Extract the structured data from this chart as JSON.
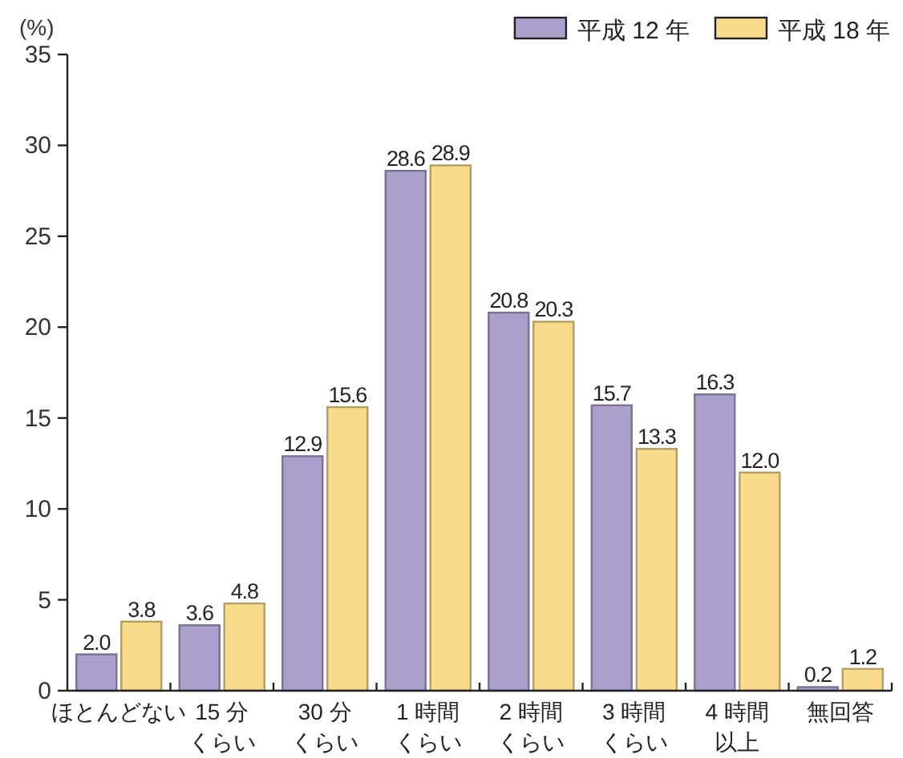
{
  "chart_data": {
    "type": "bar",
    "ylabel": "(%)",
    "categories": [
      "ほとんどない",
      "15 分くらい",
      "30 分くらい",
      "1 時間くらい",
      "2 時間くらい",
      "3 時間くらい",
      "4 時間以上",
      "無回答"
    ],
    "series": [
      {
        "name": "平成 12 年",
        "color": "#ab9fcc",
        "values": [
          2.0,
          3.6,
          12.9,
          28.6,
          20.8,
          15.7,
          16.3,
          0.2
        ],
        "value_labels": [
          "2.0",
          "3.6",
          "12.9",
          "28.6",
          "20.8",
          "15.7",
          "16.3",
          "0.2"
        ]
      },
      {
        "name": "平成 18 年",
        "color": "#f9dc8b",
        "values": [
          3.8,
          4.8,
          15.6,
          28.9,
          20.3,
          13.3,
          12.0,
          1.2
        ],
        "value_labels": [
          "3.8",
          "4.8",
          "15.6",
          "28.9",
          "20.3",
          "13.3",
          "12.0",
          "1.2"
        ]
      }
    ],
    "ylim": [
      0,
      35
    ],
    "yticks": [
      0,
      5,
      10,
      15,
      20,
      25,
      30,
      35
    ],
    "legend": "top right"
  }
}
